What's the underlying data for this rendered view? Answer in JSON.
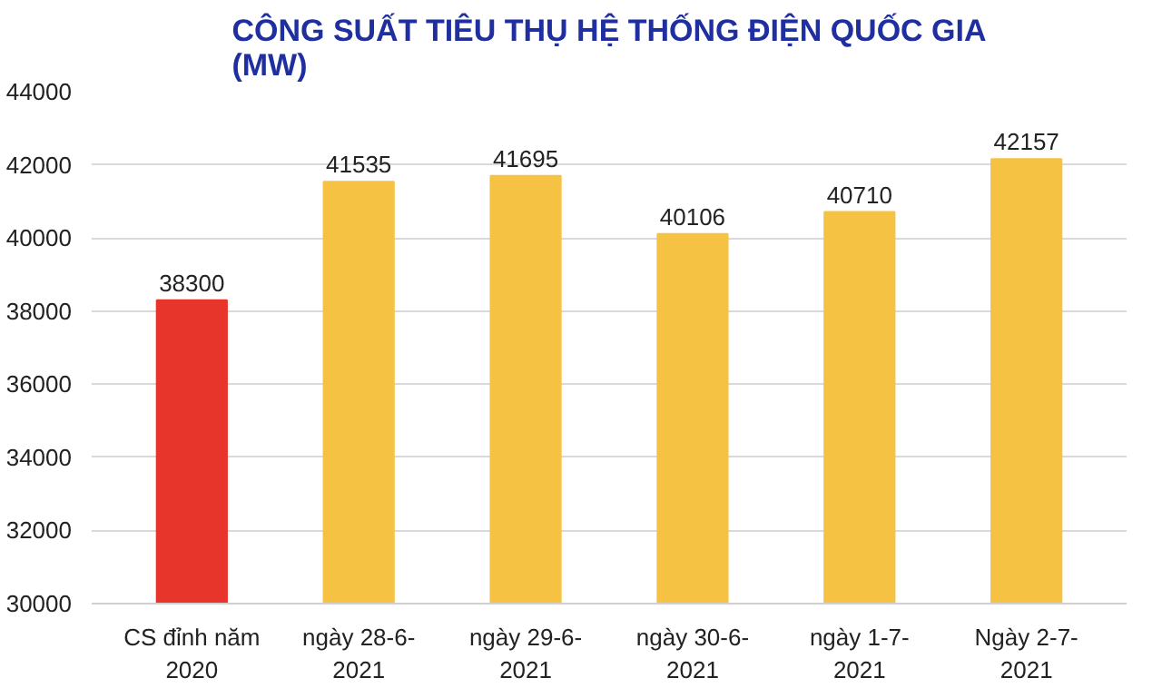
{
  "chart_data": {
    "type": "bar",
    "title": "CÔNG SUẤT TIÊU THỤ HỆ THỐNG ĐIỆN QUỐC GIA\n(MW)",
    "categories": [
      "CS đỉnh năm\n2020",
      "ngày 28-6-\n2021",
      "ngày 29-6-\n2021",
      "ngày 30-6-\n2021",
      "ngày 1-7-\n2021",
      "Ngày 2-7-\n2021"
    ],
    "values": [
      38300,
      41535,
      41695,
      40106,
      40710,
      42157
    ],
    "colors": [
      "#e8352b",
      "#f6c244",
      "#f6c244",
      "#f6c244",
      "#f6c244",
      "#f6c244"
    ],
    "ylim": [
      30000,
      44000
    ],
    "yticks": [
      30000,
      32000,
      34000,
      36000,
      38000,
      40000,
      42000,
      44000
    ],
    "grid": "y",
    "data_labels": true
  }
}
